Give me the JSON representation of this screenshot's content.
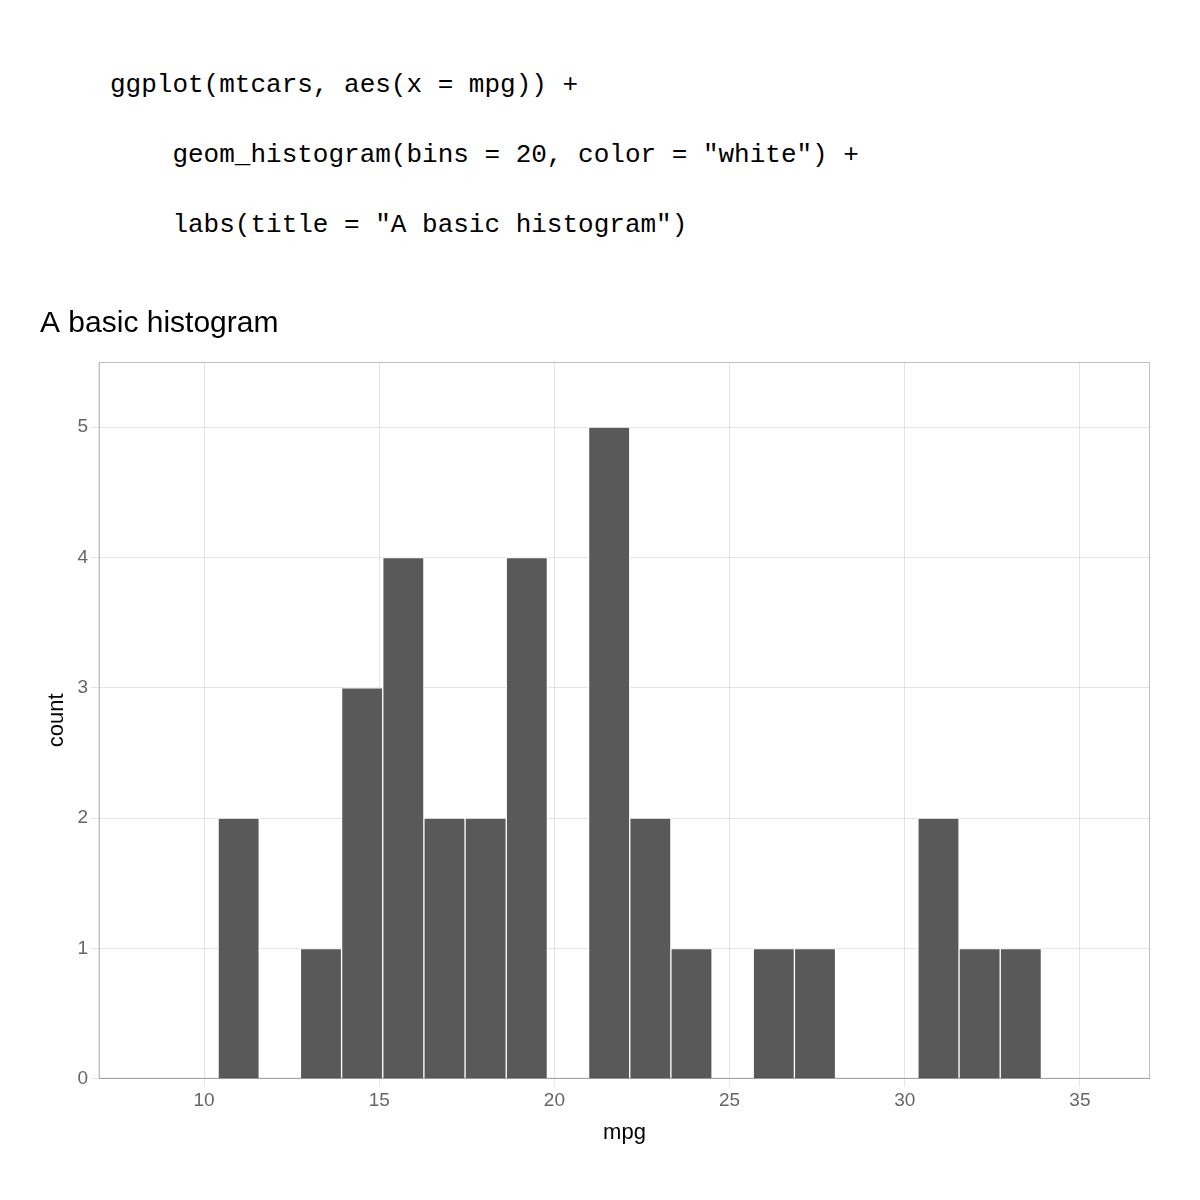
{
  "chart_data": {
    "type": "histogram",
    "title": "A basic histogram",
    "annotations": [
      "ggplot(mtcars, aes(x = mpg)) +",
      "    geom_histogram(bins = 20, color = \"white\") +",
      "    labs(title = \"A basic histogram\")"
    ],
    "xlabel": "mpg",
    "ylabel": "count",
    "bins": [
      10.4,
      11.575,
      12.75,
      13.925,
      15.1,
      16.275,
      17.45,
      18.625,
      19.8,
      20.975,
      22.15,
      23.325,
      24.5,
      25.675,
      26.85,
      28.025,
      29.2,
      30.375,
      31.55,
      32.725,
      33.9
    ],
    "values": [
      2,
      0,
      1,
      3,
      4,
      2,
      2,
      4,
      0,
      5,
      2,
      1,
      0,
      1,
      1,
      0,
      0,
      2,
      1,
      1
    ],
    "color": "#595959",
    "xlim": [
      7,
      37
    ],
    "ylim": [
      0,
      5.5
    ],
    "xticks": [
      10,
      15,
      20,
      25,
      30,
      35
    ],
    "yticks": [
      0,
      1,
      2,
      3,
      4,
      5
    ],
    "grid": true
  }
}
